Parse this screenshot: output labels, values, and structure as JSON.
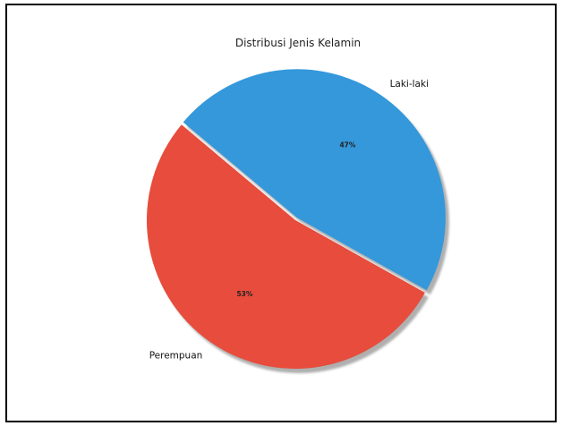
{
  "chart_data": {
    "type": "pie",
    "title": "Distribusi Jenis Kelamin",
    "categories": [
      "Perempuan",
      "Laki-laki"
    ],
    "values": [
      53,
      47
    ],
    "percent_labels": [
      "53%",
      "47%"
    ],
    "colors": [
      "#e74c3c",
      "#3498db"
    ],
    "explode": [
      0,
      0.02
    ],
    "shadow": true,
    "start_angle_deg": 140,
    "counterclockwise": true
  }
}
